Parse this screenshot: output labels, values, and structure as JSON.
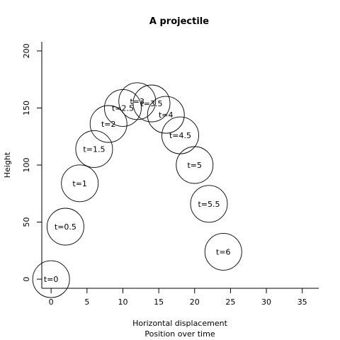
{
  "chart_data": {
    "type": "scatter",
    "title": "A projectile",
    "xlabel_lines": [
      "Horizontal displacement",
      "Position over time"
    ],
    "ylabel": "Height",
    "xlim": [
      -1.3,
      37.3
    ],
    "ylim": [
      -8,
      208
    ],
    "xticks": [
      0,
      5,
      10,
      15,
      20,
      25,
      30,
      35
    ],
    "yticks": [
      0,
      50,
      100,
      150,
      200
    ],
    "marker": "open circle",
    "points": [
      {
        "label": "t=0",
        "x": 0,
        "y": 0
      },
      {
        "label": "t=0.5",
        "x": 2,
        "y": 46
      },
      {
        "label": "t=1",
        "x": 4,
        "y": 84
      },
      {
        "label": "t=1.5",
        "x": 6,
        "y": 114
      },
      {
        "label": "t=2",
        "x": 8,
        "y": 136
      },
      {
        "label": "t=2.5",
        "x": 10,
        "y": 150
      },
      {
        "label": "t=3",
        "x": 12,
        "y": 156
      },
      {
        "label": "t=3.5",
        "x": 14,
        "y": 154
      },
      {
        "label": "t=4",
        "x": 16,
        "y": 144
      },
      {
        "label": "t=4.5",
        "x": 18,
        "y": 126
      },
      {
        "label": "t=5",
        "x": 20,
        "y": 100
      },
      {
        "label": "t=5.5",
        "x": 22,
        "y": 66
      },
      {
        "label": "t=6",
        "x": 24,
        "y": 24
      }
    ]
  }
}
